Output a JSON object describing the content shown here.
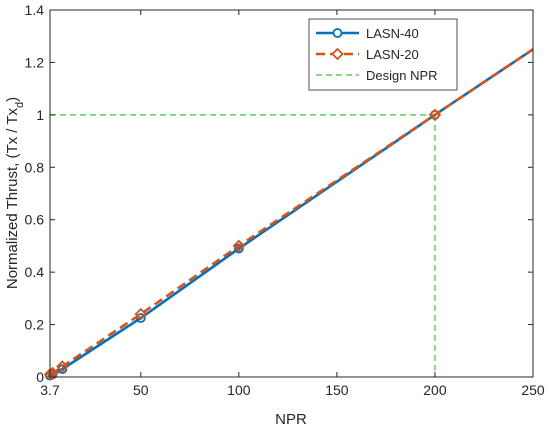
{
  "chart_data": {
    "type": "line",
    "title": "",
    "xlabel": "NPR",
    "ylabel": "Normalized Thrust, (Tx / Tx",
    "ylabel_subscript": "d",
    "ylabel_suffix": ")",
    "xlim": [
      3.7,
      250
    ],
    "ylim": [
      0,
      1.4
    ],
    "xticks": [
      3.7,
      50,
      100,
      150,
      200,
      250
    ],
    "xtick_labels": [
      "3.7",
      "50",
      "100",
      "150",
      "200",
      "250"
    ],
    "yticks": [
      0,
      0.2,
      0.4,
      0.6,
      0.8,
      1,
      1.2,
      1.4
    ],
    "ytick_labels": [
      "0",
      "0.2",
      "0.4",
      "0.6",
      "0.8",
      "1",
      "1.2",
      "1.4"
    ],
    "grid": false,
    "legend_position": "top-right",
    "series": [
      {
        "name": "LASN-40",
        "color": "#0072BD",
        "line": "solid",
        "marker": "circle",
        "x": [
          3.7,
          5,
          10,
          50,
          100,
          200,
          250
        ],
        "y": [
          0.005,
          0.01,
          0.03,
          0.225,
          0.49,
          1.0,
          1.25
        ],
        "marker_x": [
          3.7,
          5,
          10,
          50,
          100,
          200
        ]
      },
      {
        "name": "LASN-20",
        "color": "#D95319",
        "line": "dashed",
        "marker": "diamond",
        "x": [
          3.7,
          5,
          10,
          50,
          100,
          200,
          250
        ],
        "y": [
          0.01,
          0.015,
          0.04,
          0.24,
          0.5,
          1.0,
          1.25
        ],
        "marker_x": [
          3.7,
          5,
          10,
          50,
          100,
          200
        ]
      }
    ],
    "design_npr": {
      "name": "Design NPR",
      "color": "#33CC33",
      "x": 200,
      "y": 1.0
    }
  }
}
